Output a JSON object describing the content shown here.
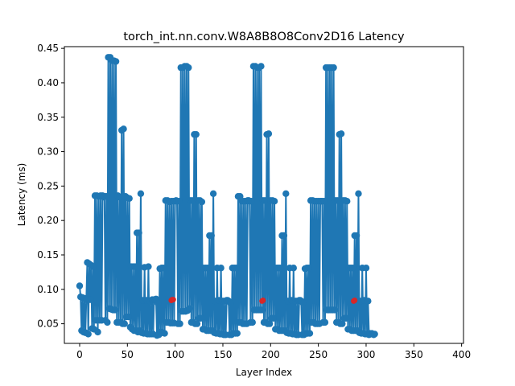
{
  "chart_data": {
    "type": "line",
    "title": "torch_int.nn.conv.W8A8B8O8Conv2D16 Latency",
    "xlabel": "Layer Index",
    "ylabel": "Latency (ms)",
    "xlim": [
      -16,
      402
    ],
    "ylim": [
      0.0215,
      0.4525
    ],
    "x_ticks": [
      0,
      50,
      100,
      150,
      200,
      250,
      300,
      350,
      400
    ],
    "y_ticks": [
      0.05,
      0.1,
      0.15,
      0.2,
      0.25,
      0.3,
      0.35,
      0.4,
      0.45
    ],
    "x_tick_labels": [
      "0",
      "50",
      "100",
      "150",
      "200",
      "250",
      "300",
      "350",
      "400"
    ],
    "y_tick_labels": [
      "0.05",
      "0.10",
      "0.15",
      "0.20",
      "0.25",
      "0.30",
      "0.35",
      "0.40",
      "0.45"
    ],
    "grid": false,
    "colors": {
      "line": "#1f77b4",
      "highlight": "#d62728"
    },
    "series": [
      {
        "values": [
          0.105,
          0.089,
          0.04,
          0.088,
          0.038,
          0.087,
          0.037,
          0.085,
          0.139,
          0.035,
          0.137,
          0.085,
          0.135,
          0.043,
          0.133,
          0.042,
          0.236,
          0.055,
          0.236,
          0.038,
          0.235,
          0.055,
          0.236,
          0.055,
          0.236,
          0.234,
          0.235,
          0.055,
          0.235,
          0.052,
          0.437,
          0.072,
          0.437,
          0.071,
          0.432,
          0.07,
          0.432,
          0.07,
          0.431,
          0.052,
          0.236,
          0.052,
          0.234,
          0.052,
          0.331,
          0.05,
          0.333,
          0.05,
          0.235,
          0.06,
          0.233,
          0.06,
          0.232,
          0.045,
          0.133,
          0.042,
          0.133,
          0.04,
          0.133,
          0.04,
          0.182,
          0.038,
          0.182,
          0.04,
          0.239,
          0.037,
          0.084,
          0.036,
          0.132,
          0.036,
          0.084,
          0.035,
          0.133,
          0.035,
          0.082,
          0.035,
          0.085,
          0.035,
          0.085,
          0.085,
          0.086,
          0.033,
          0.08,
          0.034,
          0.13,
          0.038,
          0.131,
          0.037,
          0.131,
          0.036,
          0.229,
          0.052,
          0.229,
          0.052,
          0.227,
          0.051,
          0.228,
          0.051,
          0.228,
          0.051,
          0.228,
          0.229,
          0.228,
          0.05,
          0.228,
          0.05,
          0.422,
          0.068,
          0.422,
          0.068,
          0.424,
          0.068,
          0.424,
          0.069,
          0.422,
          0.072,
          0.229,
          0.052,
          0.229,
          0.052,
          0.325,
          0.05,
          0.325,
          0.05,
          0.229,
          0.058,
          0.229,
          0.058,
          0.227,
          0.042,
          0.131,
          0.042,
          0.131,
          0.04,
          0.131,
          0.04,
          0.178,
          0.04,
          0.178,
          0.04,
          0.239,
          0.037,
          0.083,
          0.036,
          0.131,
          0.036,
          0.084,
          0.035,
          0.131,
          0.035,
          0.083,
          0.034,
          0.083,
          0.034,
          0.084,
          0.084,
          0.083,
          0.034,
          0.08,
          0.034,
          0.131,
          0.036,
          0.131,
          0.036,
          0.131,
          0.036,
          0.235,
          0.052,
          0.235,
          0.052,
          0.228,
          0.05,
          0.228,
          0.05,
          0.228,
          0.05,
          0.229,
          0.229,
          0.228,
          0.052,
          0.228,
          0.052,
          0.424,
          0.07,
          0.424,
          0.07,
          0.422,
          0.07,
          0.422,
          0.07,
          0.424,
          0.07,
          0.229,
          0.052,
          0.229,
          0.052,
          0.325,
          0.05,
          0.326,
          0.05,
          0.229,
          0.058,
          0.229,
          0.058,
          0.228,
          0.042,
          0.131,
          0.042,
          0.131,
          0.04,
          0.131,
          0.04,
          0.178,
          0.04,
          0.178,
          0.04,
          0.239,
          0.037,
          0.083,
          0.036,
          0.131,
          0.036,
          0.084,
          0.035,
          0.131,
          0.035,
          0.083,
          0.034,
          0.083,
          0.034,
          0.084,
          0.084,
          0.083,
          0.034,
          0.08,
          0.034,
          0.13,
          0.036,
          0.131,
          0.036,
          0.131,
          0.036,
          0.229,
          0.052,
          0.229,
          0.052,
          0.228,
          0.05,
          0.228,
          0.05,
          0.228,
          0.05,
          0.228,
          0.228,
          0.228,
          0.052,
          0.228,
          0.052,
          0.422,
          0.07,
          0.422,
          0.07,
          0.422,
          0.07,
          0.422,
          0.07,
          0.422,
          0.07,
          0.229,
          0.052,
          0.229,
          0.052,
          0.325,
          0.05,
          0.326,
          0.05,
          0.229,
          0.058,
          0.229,
          0.058,
          0.228,
          0.042,
          0.131,
          0.042,
          0.131,
          0.04,
          0.131,
          0.04,
          0.178,
          0.04,
          0.178,
          0.04,
          0.239,
          0.037,
          0.083,
          0.036,
          0.131,
          0.036,
          0.084,
          0.035,
          0.131,
          0.035,
          0.083,
          0.034,
          0.036,
          0.035,
          0.036,
          0.035,
          0.034,
          0.035
        ]
      }
    ],
    "highlighted_points": [
      {
        "x": 96,
        "y": 0.084
      },
      {
        "x": 97,
        "y": 0.085
      },
      {
        "x": 98,
        "y": 0.085
      },
      {
        "x": 191,
        "y": 0.083
      },
      {
        "x": 192,
        "y": 0.084
      },
      {
        "x": 287,
        "y": 0.083
      },
      {
        "x": 288,
        "y": 0.084
      }
    ]
  }
}
